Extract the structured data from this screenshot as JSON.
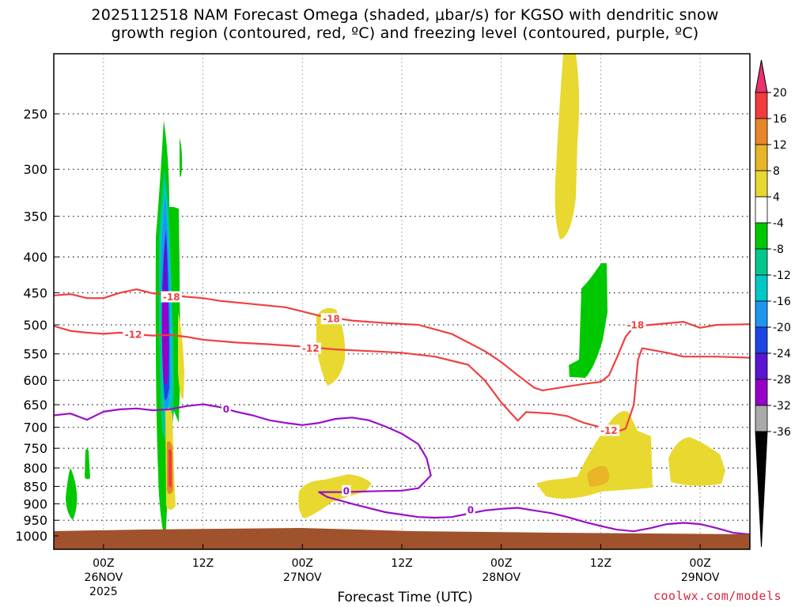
{
  "title_line1": "2025112518 NAM Forecast Omega (shaded, μbar/s) for KGSO with dendritic snow",
  "title_line2": "growth region (contoured, red, ºC) and freezing level (contoured, purple, ºC)",
  "xaxis_title": "Forecast Time (UTC)",
  "credit": "coolwx.com/models",
  "chart_data": {
    "type": "heatmap",
    "title": "2025112518 NAM Forecast Omega (shaded, μbar/s) for KGSO with dendritic snow growth region (contoured, red, ºC) and freezing level (contoured, purple, ºC)",
    "xlabel": "Forecast Time (UTC)",
    "ylabel": "",
    "y_unit": "hPa",
    "y_scale": "log",
    "ylim": [
      1000,
      200
    ],
    "y_ticks": [
      250,
      300,
      350,
      400,
      450,
      500,
      550,
      600,
      650,
      700,
      750,
      800,
      850,
      900,
      950,
      1000
    ],
    "x_ticks": [
      {
        "hour": 6,
        "label": "00Z",
        "date": "26NOV",
        "year": "2025"
      },
      {
        "hour": 18,
        "label": "12Z",
        "date": "",
        "year": ""
      },
      {
        "hour": 30,
        "label": "00Z",
        "date": "27NOV",
        "year": ""
      },
      {
        "hour": 42,
        "label": "12Z",
        "date": "",
        "year": ""
      },
      {
        "hour": 54,
        "label": "00Z",
        "date": "28NOV",
        "year": ""
      },
      {
        "hour": 66,
        "label": "12Z",
        "date": "",
        "year": ""
      },
      {
        "hour": 78,
        "label": "00Z",
        "date": "29NOV",
        "year": ""
      }
    ],
    "xlim_hours": [
      0,
      84
    ],
    "grid": true,
    "colorbar": {
      "unit": "μbar/s",
      "levels": [
        20,
        16,
        12,
        8,
        4,
        -4,
        -8,
        -12,
        -16,
        -20,
        -24,
        -28,
        -32,
        -36
      ],
      "colors": [
        "#e8336a",
        "#f03c3c",
        "#e8862a",
        "#e8b428",
        "#e8d830",
        "#ffffff",
        "#00c800",
        "#00c88c",
        "#00c8c8",
        "#1e96f0",
        "#1e46e6",
        "#5a14d2",
        "#9600c8",
        "#aaaaaa",
        "#000000"
      ]
    },
    "contour_labels": [
      {
        "series": "dendritic snow growth region",
        "value": "-18"
      },
      {
        "series": "dendritic snow growth region",
        "value": "-12"
      },
      {
        "series": "freezing level",
        "value": "0"
      }
    ],
    "series": [
      {
        "contour": -18,
        "color": "#f04040",
        "points": [
          [
            0,
            454
          ],
          [
            2,
            452
          ],
          [
            4,
            458
          ],
          [
            6,
            458
          ],
          [
            8,
            450
          ],
          [
            10,
            445
          ],
          [
            12,
            451
          ],
          [
            14,
            453
          ],
          [
            16,
            456
          ],
          [
            18,
            458
          ],
          [
            20,
            462
          ],
          [
            24,
            467
          ],
          [
            28,
            472
          ],
          [
            32,
            485
          ],
          [
            36,
            493
          ],
          [
            40,
            497
          ],
          [
            44,
            500
          ],
          [
            48,
            515
          ],
          [
            52,
            545
          ],
          [
            54,
            565
          ],
          [
            56,
            590
          ],
          [
            58,
            615
          ],
          [
            59,
            620
          ],
          [
            62,
            612
          ],
          [
            64,
            607
          ],
          [
            66,
            603
          ],
          [
            67,
            590
          ],
          [
            68,
            555
          ],
          [
            69,
            520
          ],
          [
            70,
            503
          ],
          [
            72,
            500
          ],
          [
            76,
            495
          ],
          [
            78,
            505
          ],
          [
            80,
            500
          ],
          [
            84,
            499
          ]
        ]
      },
      {
        "contour": -12,
        "color": "#f04040",
        "points": [
          [
            0,
            502
          ],
          [
            2,
            510
          ],
          [
            4,
            513
          ],
          [
            6,
            515
          ],
          [
            8,
            513
          ],
          [
            10,
            516
          ],
          [
            12,
            518
          ],
          [
            14,
            517
          ],
          [
            16,
            520
          ],
          [
            18,
            525
          ],
          [
            22,
            530
          ],
          [
            26,
            533
          ],
          [
            30,
            537
          ],
          [
            34,
            542
          ],
          [
            38,
            545
          ],
          [
            42,
            548
          ],
          [
            46,
            555
          ],
          [
            50,
            570
          ],
          [
            52,
            600
          ],
          [
            54,
            645
          ],
          [
            55,
            665
          ],
          [
            56,
            685
          ],
          [
            57,
            666
          ],
          [
            60,
            669
          ],
          [
            62,
            675
          ],
          [
            64,
            690
          ],
          [
            66,
            700
          ],
          [
            68,
            710
          ],
          [
            69,
            703
          ],
          [
            70,
            650
          ],
          [
            70.5,
            560
          ],
          [
            71,
            540
          ],
          [
            74,
            548
          ],
          [
            76,
            555
          ],
          [
            80,
            555
          ],
          [
            84,
            557
          ]
        ]
      },
      {
        "contour": 0,
        "color": "#9a10c8",
        "points": [
          [
            0,
            673
          ],
          [
            2,
            669
          ],
          [
            4,
            683
          ],
          [
            6,
            665
          ],
          [
            8,
            660
          ],
          [
            10,
            658
          ],
          [
            12,
            662
          ],
          [
            14,
            660
          ],
          [
            16,
            653
          ],
          [
            18,
            649
          ],
          [
            20,
            655
          ],
          [
            22,
            665
          ],
          [
            24,
            673
          ],
          [
            26,
            684
          ],
          [
            28,
            690
          ],
          [
            30,
            695
          ],
          [
            32,
            690
          ],
          [
            34,
            681
          ],
          [
            36,
            678
          ],
          [
            38,
            684
          ],
          [
            40,
            698
          ],
          [
            42,
            715
          ],
          [
            44,
            740
          ],
          [
            45,
            775
          ],
          [
            45.5,
            820
          ],
          [
            44,
            855
          ],
          [
            42,
            862
          ],
          [
            40,
            863
          ],
          [
            38,
            864
          ],
          [
            35,
            866
          ],
          [
            32,
            866
          ],
          [
            33,
            880
          ],
          [
            36,
            900
          ],
          [
            40,
            925
          ],
          [
            44,
            940
          ],
          [
            46,
            942
          ],
          [
            48,
            940
          ],
          [
            50,
            930
          ],
          [
            52,
            920
          ],
          [
            54,
            915
          ],
          [
            56,
            912
          ],
          [
            58,
            920
          ],
          [
            60,
            928
          ],
          [
            62,
            940
          ],
          [
            64,
            955
          ],
          [
            66,
            968
          ],
          [
            68,
            980
          ],
          [
            70,
            985
          ],
          [
            72,
            975
          ],
          [
            74,
            962
          ],
          [
            76,
            958
          ],
          [
            78,
            962
          ],
          [
            80,
            975
          ],
          [
            82,
            990
          ],
          [
            84,
            995
          ]
        ]
      }
    ]
  }
}
